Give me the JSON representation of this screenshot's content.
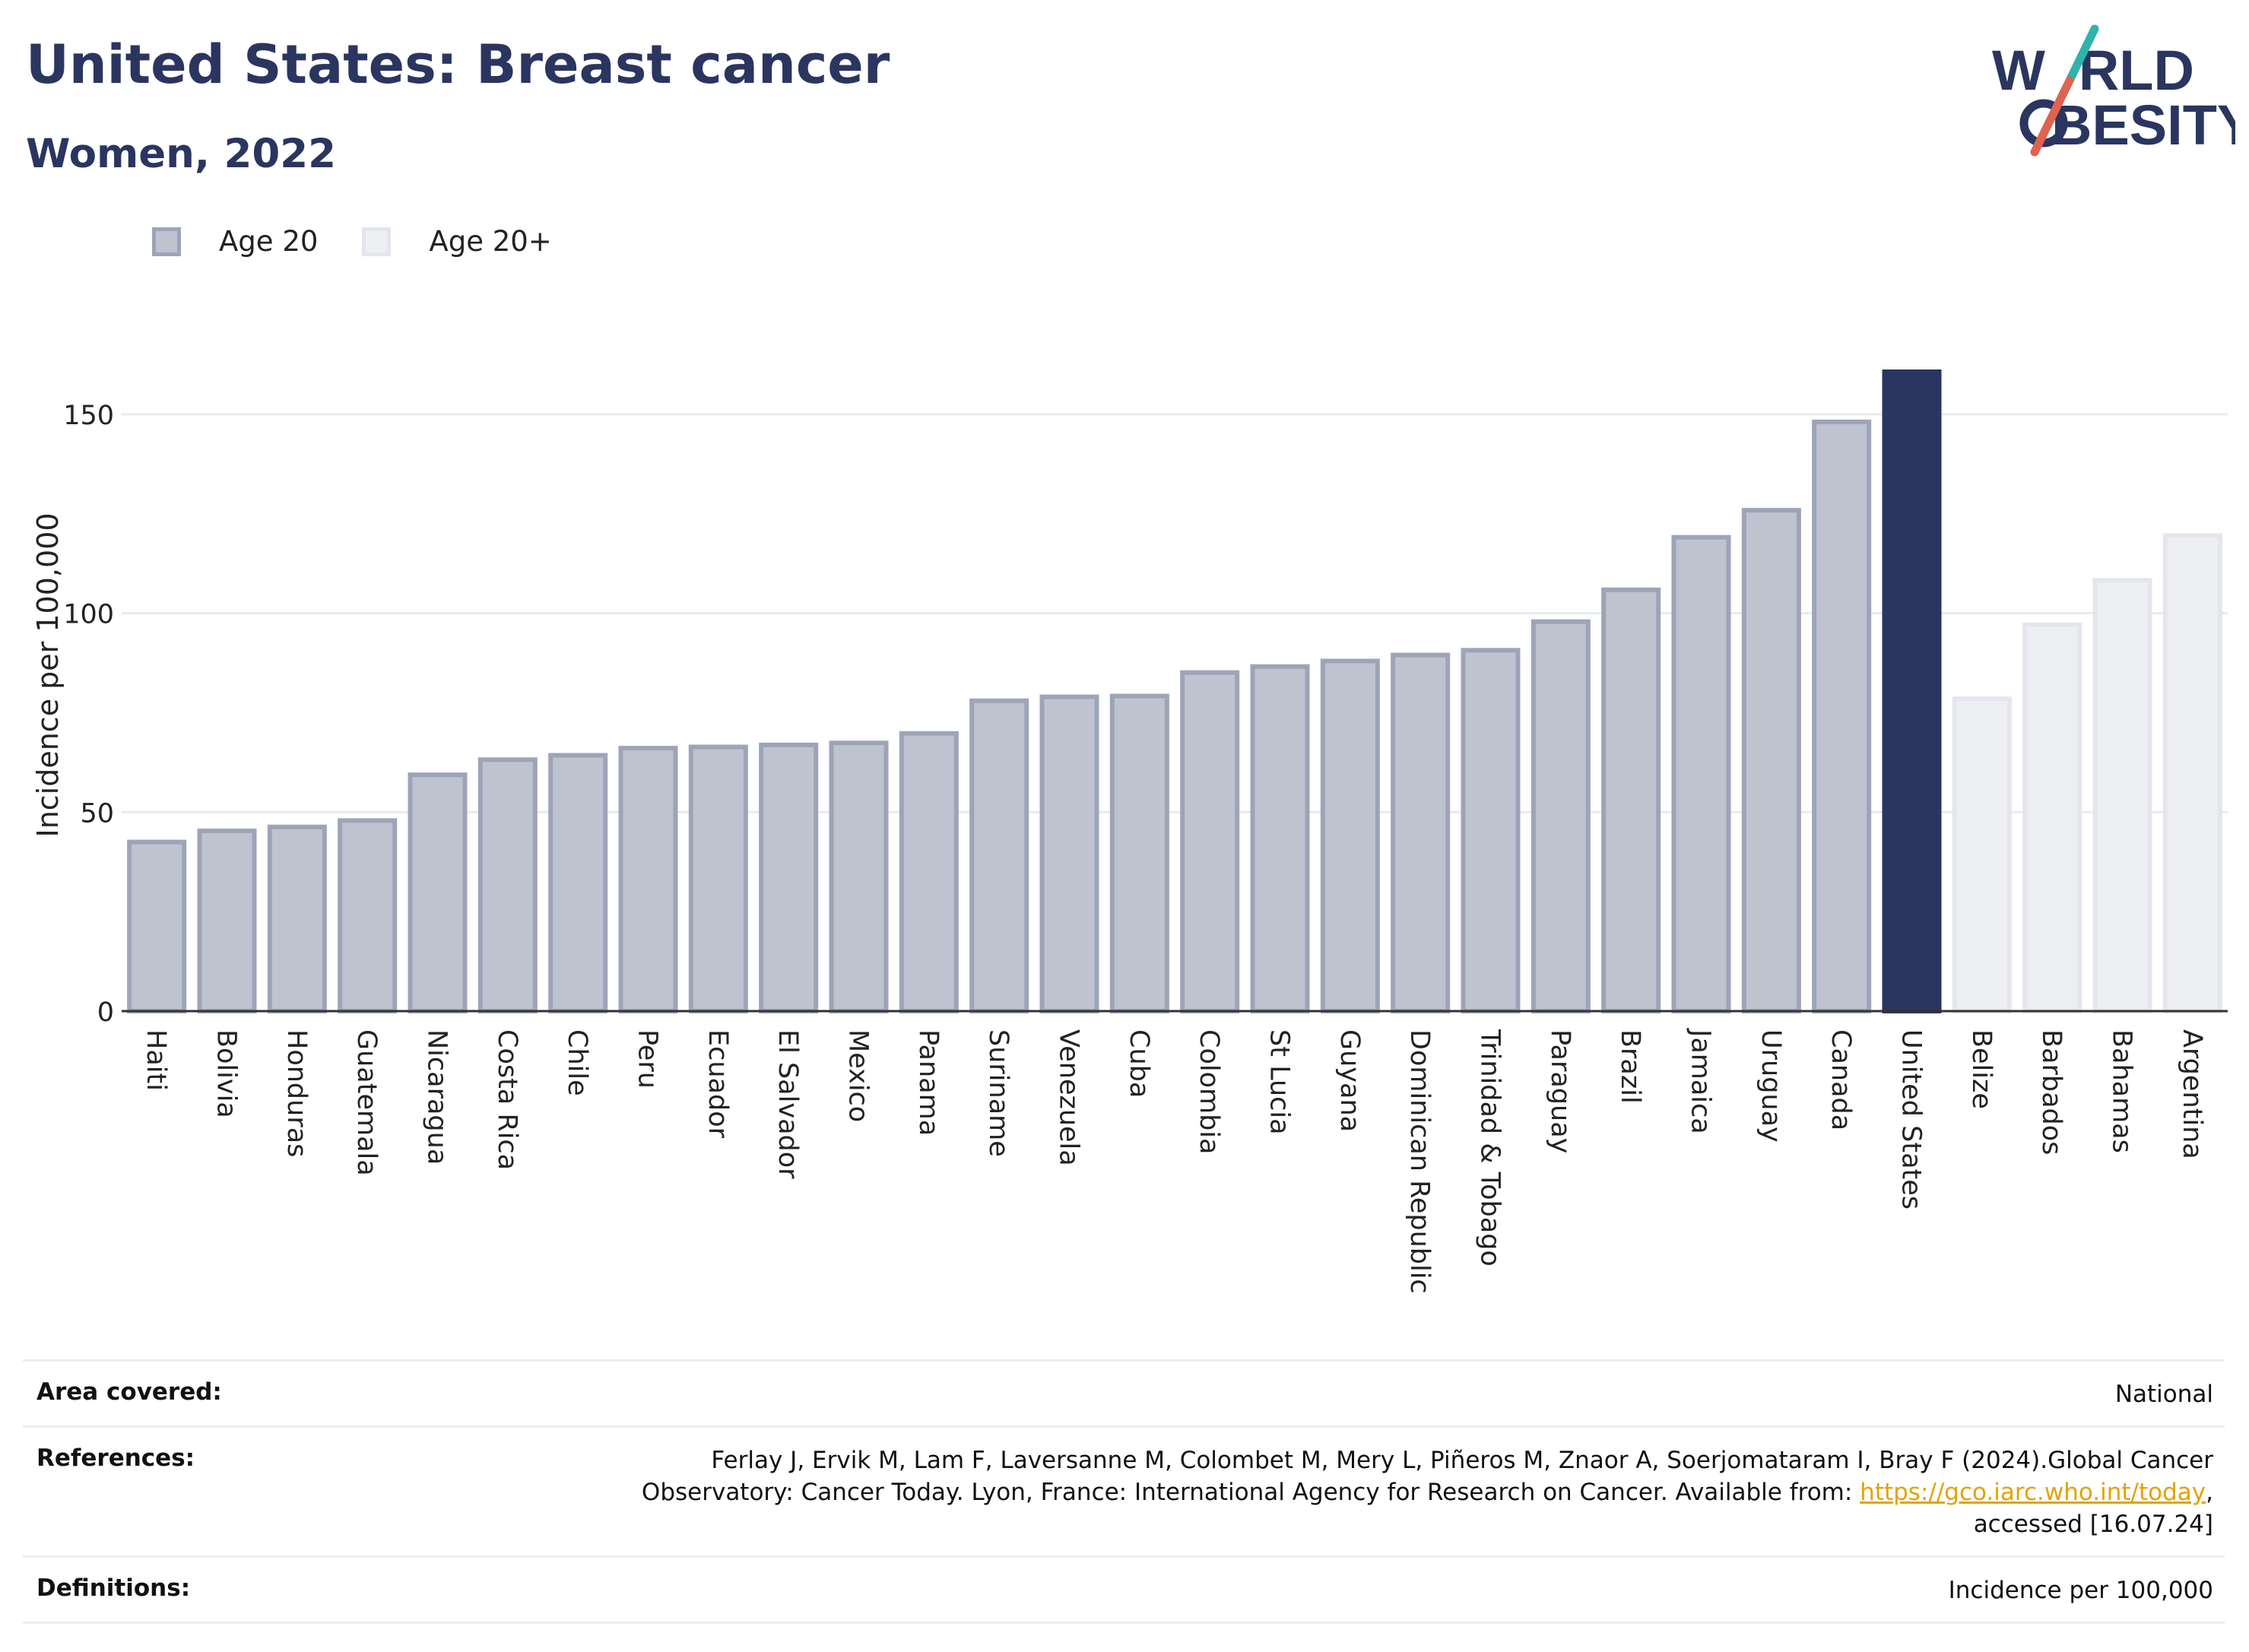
{
  "header": {
    "title": "United States: Breast cancer",
    "subtitle": "Women, 2022"
  },
  "logo": {
    "line1": "W",
    "line1b": "RLD",
    "line2": "BESITY",
    "slash_color_top": "#2fb3aa",
    "slash_color_bottom": "#e0624f"
  },
  "legend": [
    {
      "label": "Age 20",
      "color": "#bfc3d0",
      "border": "#9ea4b8"
    },
    {
      "label": "Age 20+",
      "color": "#eeeff3",
      "border": "#e2e4ea"
    }
  ],
  "chart_data": {
    "type": "bar",
    "ylabel": "Incidence per 100,000",
    "ylim": [
      0,
      170
    ],
    "yticks": [
      0,
      50,
      100,
      150
    ],
    "grid": true,
    "colors": {
      "age20": "#bfc3d0",
      "age20_border": "#9ea4b8",
      "age20plus": "#eeeff3",
      "age20plus_border": "#e4e6ec",
      "highlight": "#2a3560"
    },
    "categories": [
      "Haiti",
      "Bolivia",
      "Honduras",
      "Guatemala",
      "Nicaragua",
      "Costa Rica",
      "Chile",
      "Peru",
      "Ecuador",
      "El Salvador",
      "Mexico",
      "Panama",
      "Suriname",
      "Venezuela",
      "Cuba",
      "Colombia",
      "St Lucia",
      "Guyana",
      "Dominican Republic",
      "Trinidad & Tobago",
      "Paraguay",
      "Brazil",
      "Jamaica",
      "Uruguay",
      "Canada",
      "United States",
      "Belize",
      "Barbados",
      "Bahamas",
      "Argentina"
    ],
    "values": [
      42.5,
      45.3,
      46.3,
      47.9,
      59.4,
      63.2,
      64.3,
      66.1,
      66.4,
      66.9,
      67.4,
      69.8,
      78.0,
      79.0,
      79.2,
      85.1,
      86.6,
      88.0,
      89.5,
      90.7,
      97.9,
      105.9,
      119.1,
      125.9,
      148.1,
      160.7,
      78.5,
      97.1,
      108.3,
      119.5
    ],
    "groups": [
      "Age 20",
      "Age 20",
      "Age 20",
      "Age 20",
      "Age 20",
      "Age 20",
      "Age 20",
      "Age 20",
      "Age 20",
      "Age 20",
      "Age 20",
      "Age 20",
      "Age 20",
      "Age 20",
      "Age 20",
      "Age 20",
      "Age 20",
      "Age 20",
      "Age 20",
      "Age 20",
      "Age 20",
      "Age 20",
      "Age 20",
      "Age 20",
      "Age 20",
      "highlight",
      "Age 20+",
      "Age 20+",
      "Age 20+",
      "Age 20+"
    ]
  },
  "meta": {
    "area_label": "Area covered:",
    "area_value": "National",
    "ref_label": "References:",
    "ref_text_1": "Ferlay J, Ervik M, Lam F, Laversanne M, Colombet M, Mery L, Piñeros M, Znaor A, Soerjomataram I, Bray F (2024).Global Cancer",
    "ref_text_2": "Observatory: Cancer Today. Lyon, France: International Agency for Research on Cancer. Available from: ",
    "ref_link": "https://gco.iarc.who.int/today",
    "ref_text_3": ",",
    "ref_text_4": "accessed [16.07.24]",
    "def_label": "Definitions:",
    "def_value": "Incidence per 100,000"
  }
}
